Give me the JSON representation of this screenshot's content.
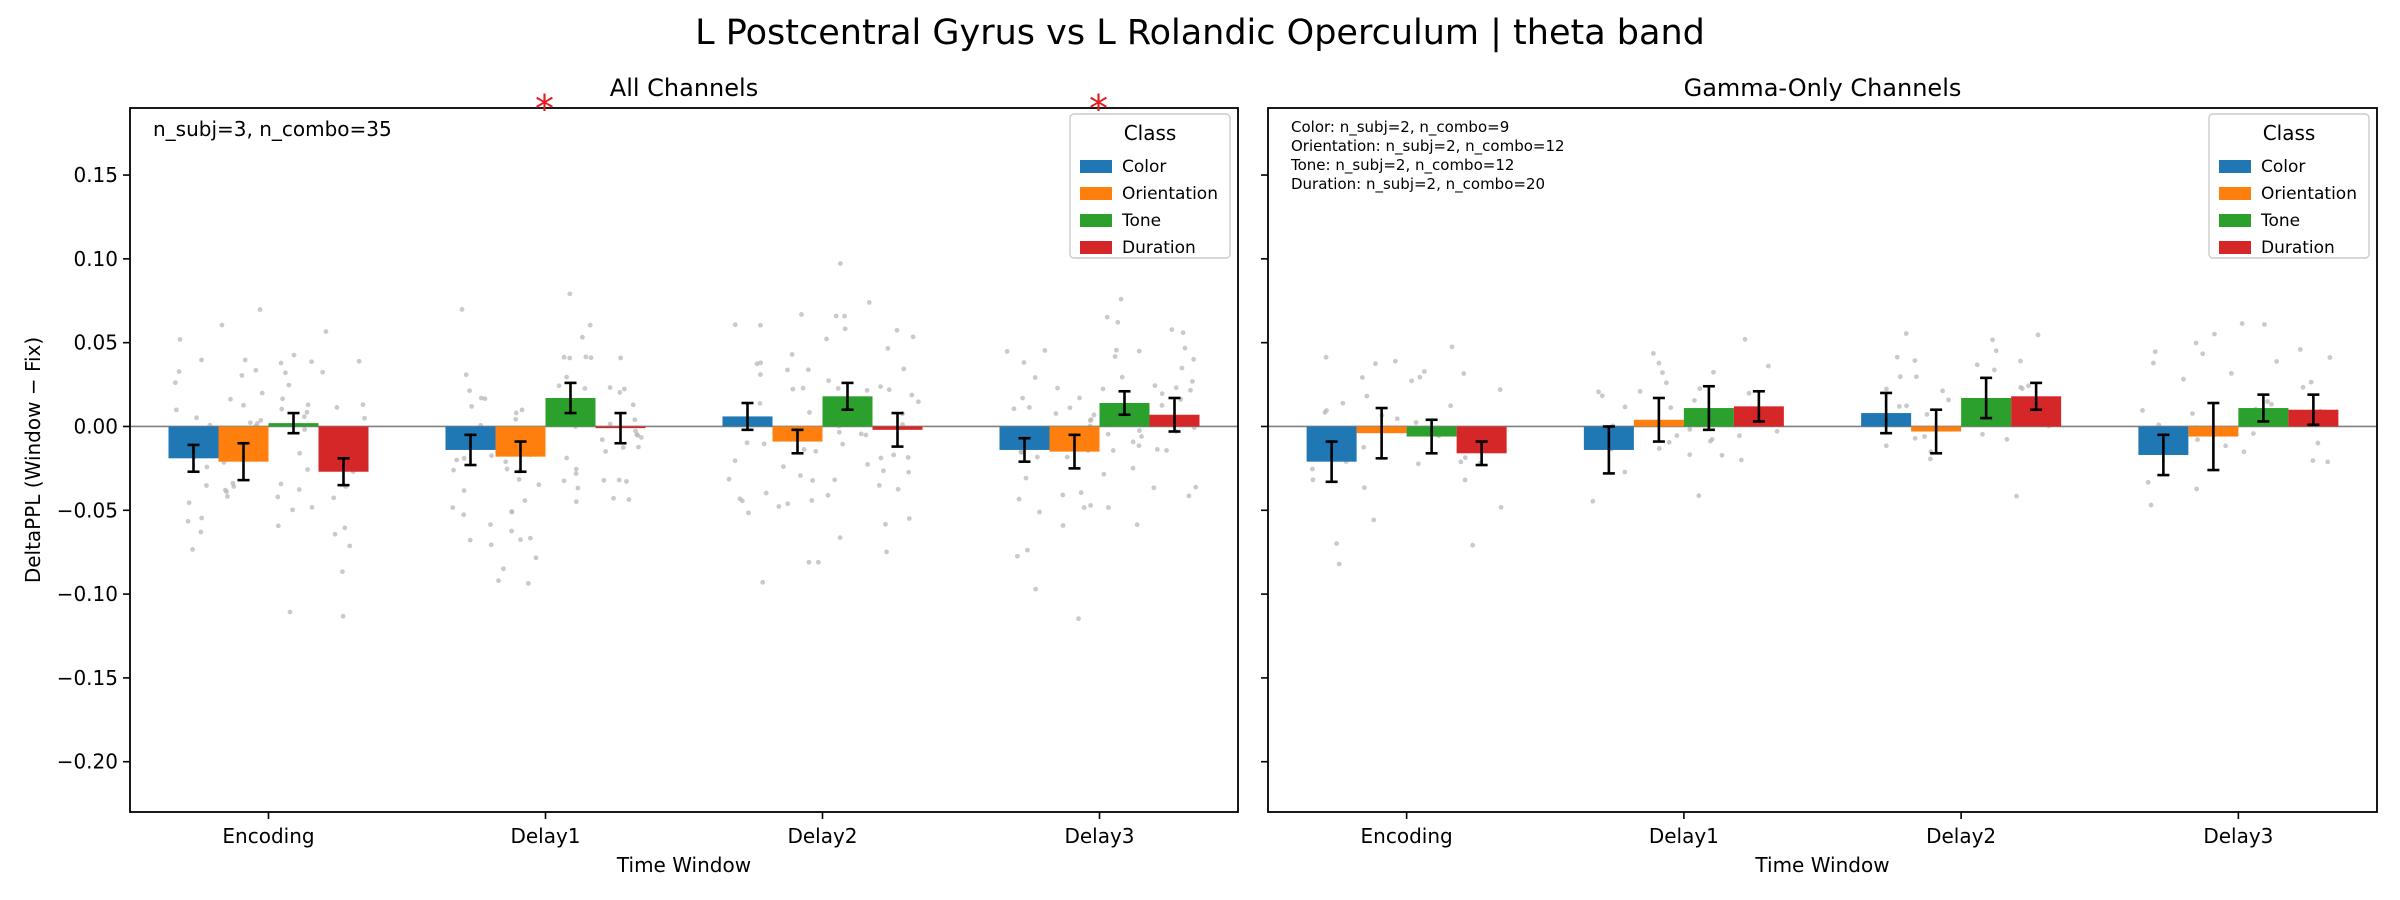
{
  "figure_title": "L Postcentral Gyrus vs L Rolandic Operculum  |  theta band",
  "chart_data": [
    {
      "type": "bar",
      "title": "All Channels",
      "xlabel": "Time Window",
      "ylabel": "DeltaPPL (Window − Fix)",
      "categories": [
        "Encoding",
        "Delay1",
        "Delay2",
        "Delay3"
      ],
      "ylim": [
        -0.23,
        0.19
      ],
      "yticks": [
        "0.15",
        "0.10",
        "0.05",
        "0.00",
        "−0.05",
        "−0.10",
        "−0.15",
        "−0.20"
      ],
      "ytick_values": [
        0.15,
        0.1,
        0.05,
        0.0,
        -0.05,
        -0.1,
        -0.15,
        -0.2
      ],
      "zero_line": true,
      "grid": false,
      "legend": {
        "title": "Class",
        "placement": "top-right"
      },
      "annotations": [
        "n_subj=3, n_combo=35"
      ],
      "significance_markers": [
        "*",
        "*"
      ],
      "significant_categories": [
        "Delay1",
        "Delay3"
      ],
      "series": [
        {
          "name": "Color",
          "color": "#1f77b4",
          "values": [
            -0.019,
            -0.014,
            0.006,
            -0.014
          ],
          "errors": [
            0.008,
            0.009,
            0.008,
            0.007
          ]
        },
        {
          "name": "Orientation",
          "color": "#ff7f0e",
          "values": [
            -0.021,
            -0.018,
            -0.009,
            -0.015
          ],
          "errors": [
            0.011,
            0.009,
            0.007,
            0.01
          ]
        },
        {
          "name": "Tone",
          "color": "#2ca02c",
          "values": [
            0.002,
            0.017,
            0.018,
            0.014
          ],
          "errors": [
            0.006,
            0.009,
            0.008,
            0.007
          ]
        },
        {
          "name": "Duration",
          "color": "#d62728",
          "values": [
            -0.027,
            -0.001,
            -0.002,
            0.007
          ],
          "errors": [
            0.008,
            0.009,
            0.01,
            0.01
          ]
        }
      ]
    },
    {
      "type": "bar",
      "title": "Gamma-Only Channels",
      "xlabel": "Time Window",
      "ylabel": "",
      "categories": [
        "Encoding",
        "Delay1",
        "Delay2",
        "Delay3"
      ],
      "ylim": [
        -0.23,
        0.19
      ],
      "zero_line": true,
      "grid": false,
      "legend": {
        "title": "Class",
        "placement": "top-right"
      },
      "annotations": [
        "Color: n_subj=2, n_combo=9",
        "Orientation: n_subj=2, n_combo=12",
        "Tone: n_subj=2, n_combo=12",
        "Duration: n_subj=2, n_combo=20"
      ],
      "series": [
        {
          "name": "Color",
          "color": "#1f77b4",
          "values": [
            -0.021,
            -0.014,
            0.008,
            -0.017
          ],
          "errors": [
            0.012,
            0.014,
            0.012,
            0.012
          ]
        },
        {
          "name": "Orientation",
          "color": "#ff7f0e",
          "values": [
            -0.004,
            0.004,
            -0.003,
            -0.006
          ],
          "errors": [
            0.015,
            0.013,
            0.013,
            0.02
          ]
        },
        {
          "name": "Tone",
          "color": "#2ca02c",
          "values": [
            -0.006,
            0.011,
            0.017,
            0.011
          ],
          "errors": [
            0.01,
            0.013,
            0.012,
            0.008
          ]
        },
        {
          "name": "Duration",
          "color": "#d62728",
          "values": [
            -0.016,
            0.012,
            0.018,
            0.01
          ],
          "errors": [
            0.007,
            0.009,
            0.008,
            0.009
          ]
        }
      ]
    }
  ]
}
